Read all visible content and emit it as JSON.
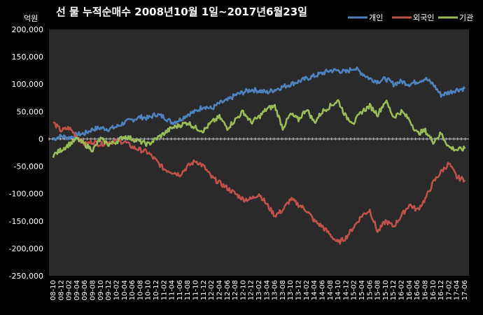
{
  "chart_data": {
    "type": "line",
    "title": "선 물 누적순매수 2008년10월 1일~2017년6월23일",
    "unit_label": "억원",
    "ylim": [
      -250000,
      200000
    ],
    "y_ticks": [
      {
        "v": 200000,
        "label": "200,000"
      },
      {
        "v": 150000,
        "label": "150,000"
      },
      {
        "v": 100000,
        "label": "100,000"
      },
      {
        "v": 50000,
        "label": "50,000"
      },
      {
        "v": 0,
        "label": "0"
      },
      {
        "v": -50000,
        "label": "-50,000"
      },
      {
        "v": -100000,
        "label": "-100,000"
      },
      {
        "v": -150000,
        "label": "-150,000"
      },
      {
        "v": -200000,
        "label": "-200,000"
      },
      {
        "v": -250000,
        "label": "-250,000"
      }
    ],
    "x_ticks": [
      "08-10",
      "08-12",
      "09-02",
      "09-04",
      "09-06",
      "09-08",
      "09-10",
      "09-12",
      "10-02",
      "10-04",
      "10-06",
      "10-08",
      "10-10",
      "10-12",
      "11-02",
      "11-04",
      "11-06",
      "11-08",
      "11-10",
      "11-12",
      "12-02",
      "12-04",
      "12-06",
      "12-08",
      "12-10",
      "12-12",
      "13-02",
      "13-04",
      "13-06",
      "13-08",
      "13-10",
      "13-12",
      "14-02",
      "14-04",
      "14-06",
      "14-08",
      "14-10",
      "14-12",
      "15-02",
      "15-04",
      "15-06",
      "15-08",
      "15-10",
      "15-12",
      "16-02",
      "16-04",
      "16-06",
      "16-08",
      "16-10",
      "16-12",
      "17-02",
      "17-04",
      "17-06"
    ],
    "grid": false,
    "legend_position": "top-right",
    "series": [
      {
        "name": "개인",
        "color": "#4F81BD",
        "values": [
          0,
          5000,
          2000,
          8000,
          10000,
          18000,
          20000,
          18000,
          22000,
          30000,
          35000,
          40000,
          38000,
          45000,
          40000,
          30000,
          35000,
          45000,
          50000,
          60000,
          55000,
          65000,
          70000,
          80000,
          85000,
          90000,
          88000,
          85000,
          90000,
          95000,
          100000,
          105000,
          110000,
          115000,
          120000,
          125000,
          125000,
          122000,
          130000,
          120000,
          110000,
          105000,
          110000,
          100000,
          105000,
          100000,
          105000,
          110000,
          100000,
          80000,
          85000,
          90000,
          92000
        ]
      },
      {
        "name": "외국인",
        "color": "#C0504D",
        "values": [
          30000,
          15000,
          20000,
          5000,
          -10000,
          -5000,
          -10000,
          -5000,
          -5000,
          -5000,
          -15000,
          -20000,
          -25000,
          -40000,
          -55000,
          -60000,
          -65000,
          -50000,
          -40000,
          -50000,
          -70000,
          -80000,
          -90000,
          -100000,
          -110000,
          -110000,
          -100000,
          -120000,
          -140000,
          -130000,
          -110000,
          -120000,
          -130000,
          -150000,
          -160000,
          -175000,
          -190000,
          -180000,
          -160000,
          -140000,
          -130000,
          -170000,
          -150000,
          -160000,
          -140000,
          -120000,
          -130000,
          -110000,
          -80000,
          -60000,
          -45000,
          -70000,
          -75000
        ]
      },
      {
        "name": "기관",
        "color": "#9BBB59",
        "values": [
          -30000,
          -20000,
          -10000,
          0,
          -10000,
          -20000,
          0,
          -10000,
          -5000,
          5000,
          0,
          -5000,
          -10000,
          0,
          10000,
          20000,
          25000,
          30000,
          20000,
          15000,
          30000,
          40000,
          20000,
          35000,
          50000,
          30000,
          40000,
          55000,
          60000,
          20000,
          45000,
          35000,
          55000,
          30000,
          50000,
          60000,
          70000,
          40000,
          30000,
          50000,
          60000,
          45000,
          70000,
          40000,
          50000,
          35000,
          10000,
          15000,
          -5000,
          10000,
          -15000,
          -20000,
          -18000
        ]
      }
    ]
  }
}
